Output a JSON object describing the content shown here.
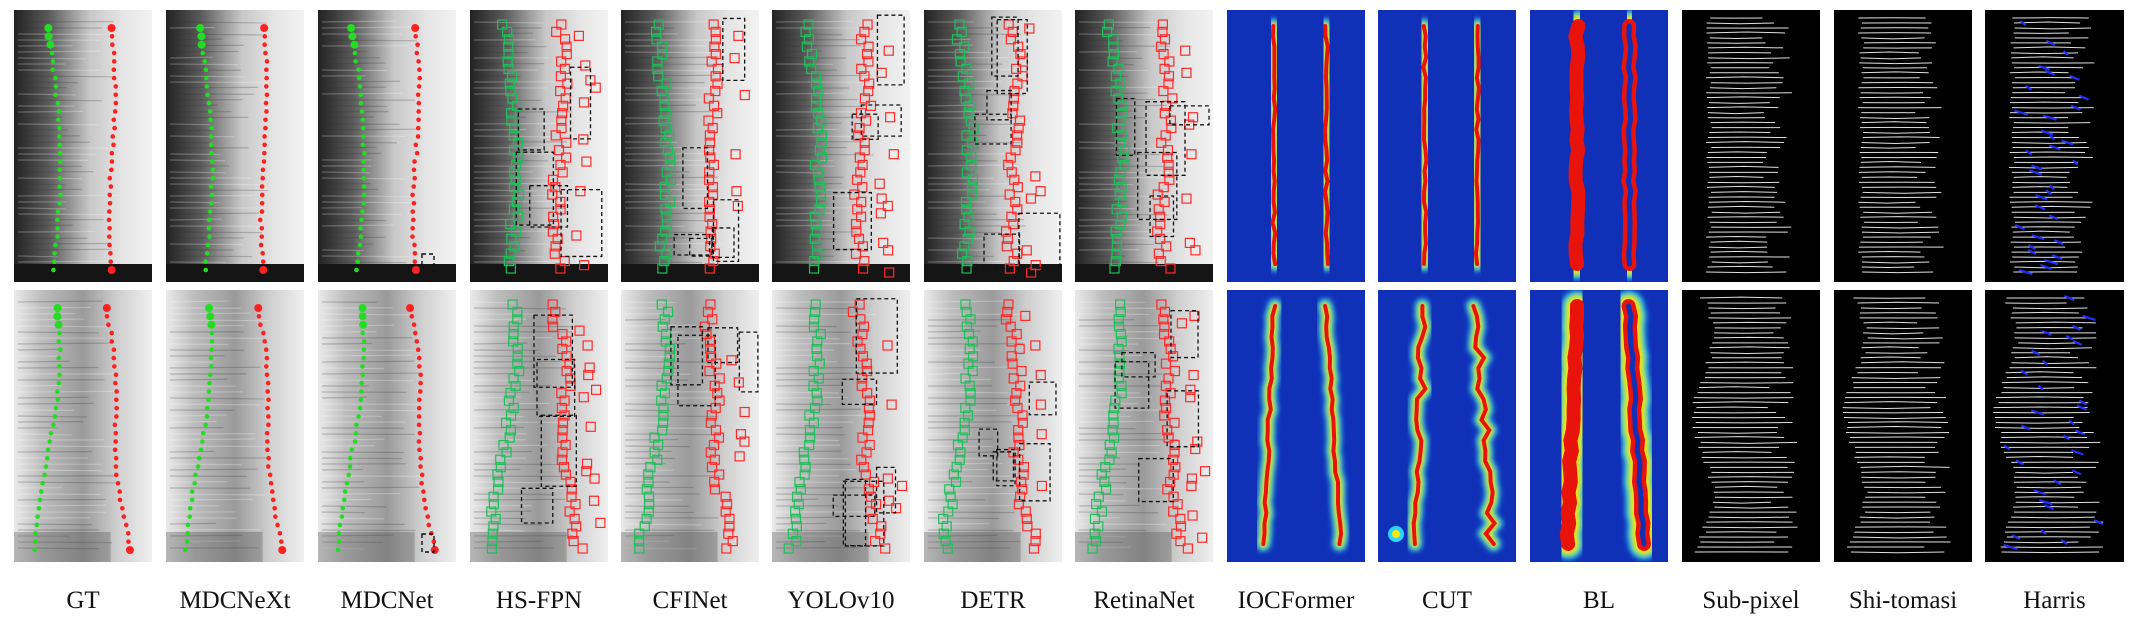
{
  "labels": [
    "GT",
    "MDCNeXt",
    "MDCNet",
    "HS-FPN",
    "CFINet",
    "YOLOv10",
    "DETR",
    "RetinaNet",
    "IOCFormer",
    "CUT",
    "BL",
    "Sub-pixel",
    "Shi-tomasi",
    "Harris"
  ],
  "colors": {
    "gt_point_green": "#22dd22",
    "gt_point_red": "#ff2020",
    "box_green": "#1fbf5a",
    "box_red": "#ff2a2a",
    "box_dashed": "#111111",
    "heat_background": "#1030b8",
    "corner_line": "#e0e0e0",
    "harris_blue": "#2030ff"
  }
}
